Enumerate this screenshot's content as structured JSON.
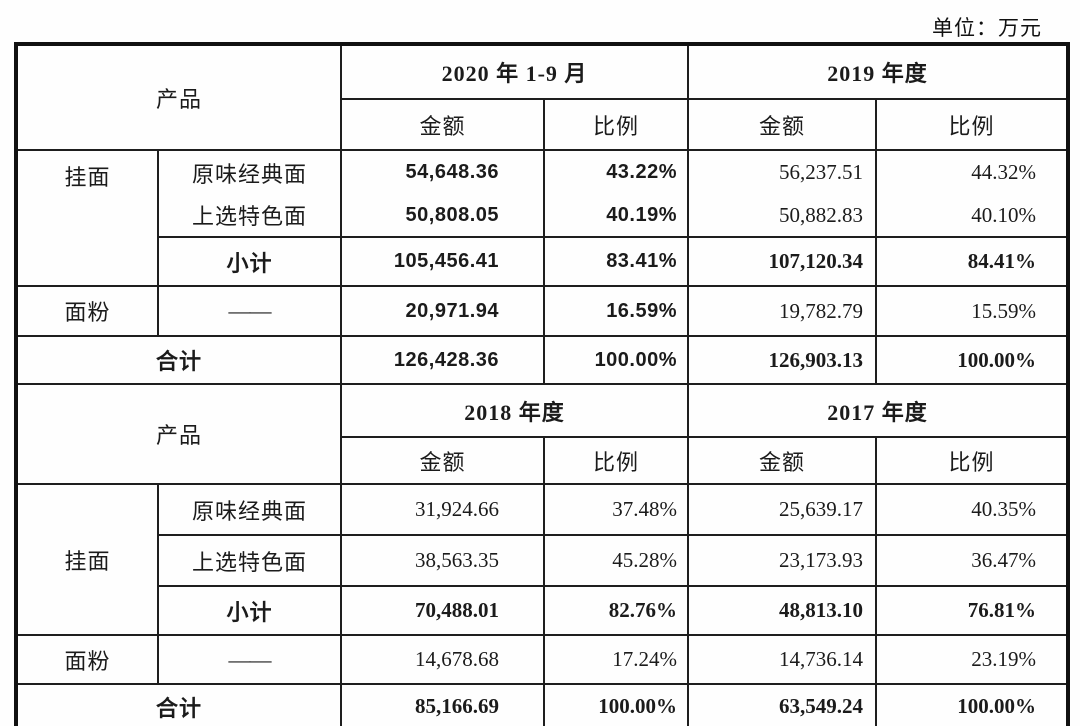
{
  "unit_label": "单位：万元",
  "table": {
    "columns": [
      "category",
      "product",
      "amount",
      "ratio",
      "amount",
      "ratio"
    ],
    "sections": [
      {
        "rows": [
          {
            "n": "s1-period-header",
            "cells": [
              {
                "t": "产品",
                "cs": 2,
                "rs": 2,
                "c": "ch",
                "n": "product-header"
              },
              {
                "t": "2020 年 1-9 月",
                "cs": 2,
                "c": "yr",
                "n": "period-2020-1-9"
              },
              {
                "t": "2019 年度",
                "cs": 2,
                "c": "yr",
                "n": "period-2019"
              }
            ]
          },
          {
            "n": "s1-sub-header",
            "cells": [
              {
                "t": "金额",
                "c": "ch",
                "n": "col-header-amount-2020"
              },
              {
                "t": "比例",
                "c": "ch",
                "n": "col-header-ratio-2020"
              },
              {
                "t": "金额",
                "c": "ch",
                "n": "col-header-amount-2019"
              },
              {
                "t": "比例",
                "c": "ch",
                "n": "col-header-ratio-2019"
              }
            ]
          },
          {
            "n": "s1-row-yuanwei",
            "cells": [
              {
                "t": "挂面",
                "rs": 3,
                "c": "ch cat-top",
                "n": "category-guamian"
              },
              {
                "t": "原味经典面",
                "c": "ch",
                "n": "product-yuanwei"
              },
              {
                "t": "54,648.36",
                "c": "amt1 b sans",
                "n": "value-amount"
              },
              {
                "t": "43.22%",
                "c": "pct1 b sans",
                "n": "value-ratio"
              },
              {
                "t": "56,237.51",
                "c": "amt2",
                "n": "value-amount"
              },
              {
                "t": "44.32%",
                "c": "pct2",
                "n": "value-ratio"
              }
            ]
          },
          {
            "n": "s1-row-shangxuan",
            "cells": [
              {
                "t": "上选特色面",
                "c": "ch",
                "n": "product-shangxuan"
              },
              {
                "t": "50,808.05",
                "c": "amt1 b sans",
                "n": "value-amount"
              },
              {
                "t": "40.19%",
                "c": "pct1 b sans",
                "n": "value-ratio"
              },
              {
                "t": "50,882.83",
                "c": "amt2",
                "n": "value-amount"
              },
              {
                "t": "40.10%",
                "c": "pct2",
                "n": "value-ratio"
              }
            ]
          },
          {
            "n": "s1-row-xiaoji",
            "cells": [
              {
                "t": "小计",
                "c": "ch b",
                "n": "label-subtotal"
              },
              {
                "t": "105,456.41",
                "c": "amt1 b sans",
                "n": "value-amount"
              },
              {
                "t": "83.41%",
                "c": "pct1 b sans",
                "n": "value-ratio"
              },
              {
                "t": "107,120.34",
                "c": "amt2 b",
                "n": "value-amount"
              },
              {
                "t": "84.41%",
                "c": "pct2 b",
                "n": "value-ratio"
              }
            ]
          },
          {
            "n": "s1-row-mianfen",
            "cells": [
              {
                "t": "面粉",
                "c": "ch",
                "n": "category-mianfen"
              },
              {
                "t": "——",
                "c": "dash",
                "n": "placeholder-dash"
              },
              {
                "t": "20,971.94",
                "c": "amt1 b sans",
                "n": "value-amount"
              },
              {
                "t": "16.59%",
                "c": "pct1 b sans",
                "n": "value-ratio"
              },
              {
                "t": "19,782.79",
                "c": "amt2",
                "n": "value-amount"
              },
              {
                "t": "15.59%",
                "c": "pct2",
                "n": "value-ratio"
              }
            ]
          },
          {
            "n": "s1-row-heji",
            "cells": [
              {
                "t": "合计",
                "cs": 2,
                "c": "ch b",
                "n": "label-total"
              },
              {
                "t": "126,428.36",
                "c": "amt1 b sans",
                "n": "value-amount"
              },
              {
                "t": "100.00%",
                "c": "pct1 b sans",
                "n": "value-ratio"
              },
              {
                "t": "126,903.13",
                "c": "amt2 b",
                "n": "value-amount"
              },
              {
                "t": "100.00%",
                "c": "pct2 b",
                "n": "value-ratio"
              }
            ]
          }
        ]
      },
      {
        "rows": [
          {
            "n": "s2-period-header",
            "cells": [
              {
                "t": "产品",
                "cs": 2,
                "rs": 2,
                "c": "ch",
                "n": "product-header"
              },
              {
                "t": "2018 年度",
                "cs": 2,
                "c": "yr",
                "n": "period-2018"
              },
              {
                "t": "2017 年度",
                "cs": 2,
                "c": "yr",
                "n": "period-2017"
              }
            ]
          },
          {
            "n": "s2-sub-header",
            "cells": [
              {
                "t": "金额",
                "c": "ch",
                "n": "col-header-amount-2018"
              },
              {
                "t": "比例",
                "c": "ch",
                "n": "col-header-ratio-2018"
              },
              {
                "t": "金额",
                "c": "ch",
                "n": "col-header-amount-2017"
              },
              {
                "t": "比例",
                "c": "ch",
                "n": "col-header-ratio-2017"
              }
            ]
          },
          {
            "n": "s2-row-yuanwei",
            "cells": [
              {
                "t": "挂面",
                "rs": 3,
                "c": "ch",
                "n": "category-guamian"
              },
              {
                "t": "原味经典面",
                "c": "ch",
                "n": "product-yuanwei"
              },
              {
                "t": "31,924.66",
                "c": "amt1",
                "n": "value-amount"
              },
              {
                "t": "37.48%",
                "c": "pct1",
                "n": "value-ratio"
              },
              {
                "t": "25,639.17",
                "c": "amt2",
                "n": "value-amount"
              },
              {
                "t": "40.35%",
                "c": "pct2",
                "n": "value-ratio"
              }
            ]
          },
          {
            "n": "s2-row-shangxuan",
            "cells": [
              {
                "t": "上选特色面",
                "c": "ch",
                "n": "product-shangxuan"
              },
              {
                "t": "38,563.35",
                "c": "amt1",
                "n": "value-amount"
              },
              {
                "t": "45.28%",
                "c": "pct1",
                "n": "value-ratio"
              },
              {
                "t": "23,173.93",
                "c": "amt2",
                "n": "value-amount"
              },
              {
                "t": "36.47%",
                "c": "pct2",
                "n": "value-ratio"
              }
            ]
          },
          {
            "n": "s2-row-xiaoji",
            "cells": [
              {
                "t": "小计",
                "c": "ch b",
                "n": "label-subtotal"
              },
              {
                "t": "70,488.01",
                "c": "amt1 b",
                "n": "value-amount"
              },
              {
                "t": "82.76%",
                "c": "pct1 b",
                "n": "value-ratio"
              },
              {
                "t": "48,813.10",
                "c": "amt2 b",
                "n": "value-amount"
              },
              {
                "t": "76.81%",
                "c": "pct2 b",
                "n": "value-ratio"
              }
            ]
          },
          {
            "n": "s2-row-mianfen",
            "cells": [
              {
                "t": "面粉",
                "c": "ch",
                "n": "category-mianfen"
              },
              {
                "t": "——",
                "c": "dash",
                "n": "placeholder-dash"
              },
              {
                "t": "14,678.68",
                "c": "amt1",
                "n": "value-amount"
              },
              {
                "t": "17.24%",
                "c": "pct1",
                "n": "value-ratio"
              },
              {
                "t": "14,736.14",
                "c": "amt2",
                "n": "value-amount"
              },
              {
                "t": "23.19%",
                "c": "pct2",
                "n": "value-ratio"
              }
            ]
          },
          {
            "n": "s2-row-heji",
            "cells": [
              {
                "t": "合计",
                "cs": 2,
                "c": "ch b",
                "n": "label-total"
              },
              {
                "t": "85,166.69",
                "c": "amt1 b",
                "n": "value-amount"
              },
              {
                "t": "100.00%",
                "c": "pct1 b",
                "n": "value-ratio"
              },
              {
                "t": "63,549.24",
                "c": "amt2 b",
                "n": "value-amount"
              },
              {
                "t": "100.00%",
                "c": "pct2 b",
                "n": "value-ratio"
              }
            ]
          }
        ]
      }
    ]
  }
}
